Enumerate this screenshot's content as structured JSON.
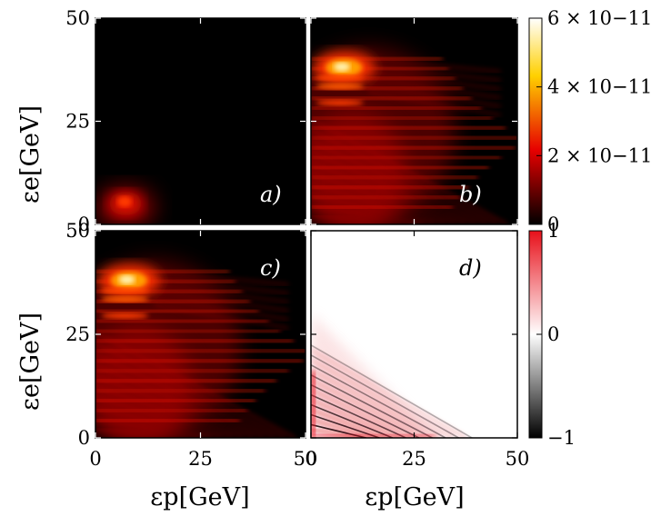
{
  "chart_data": {
    "type": "heatmap",
    "panels": [
      {
        "id": "a",
        "label": "a)",
        "colormap": "hot",
        "label_color": "#ffffff"
      },
      {
        "id": "b",
        "label": "b)",
        "colormap": "hot",
        "label_color": "#ffffff"
      },
      {
        "id": "c",
        "label": "c)",
        "colormap": "hot",
        "label_color": "#ffffff"
      },
      {
        "id": "d",
        "label": "d)",
        "colormap": "diverging",
        "label_color": "#000000"
      }
    ],
    "x_axis": {
      "label": "εp[GeV]",
      "range": [
        0,
        50
      ],
      "ticks": [
        "0",
        "25",
        "50"
      ]
    },
    "y_axis": {
      "label": "εe[GeV]",
      "range": [
        0,
        50
      ],
      "ticks": [
        "0",
        "25",
        "50"
      ]
    },
    "colorbar_top": {
      "range": [
        0,
        6e-11
      ],
      "ticks": [
        "0",
        "2 × 10−11",
        "4 × 10−11",
        "6 × 10−11"
      ],
      "colormap": "hot"
    },
    "colorbar_bottom": {
      "range": [
        -1,
        1
      ],
      "ticks": [
        "−1",
        "0",
        "1"
      ],
      "colormap": "diverging"
    },
    "grid": false,
    "colors": {
      "hot_low": "#000000",
      "hot_mid": "#e60000",
      "hot_high": "#ffffff",
      "div_low": "#000000",
      "div_mid": "#ffffff",
      "div_high": "#e8101a"
    }
  }
}
